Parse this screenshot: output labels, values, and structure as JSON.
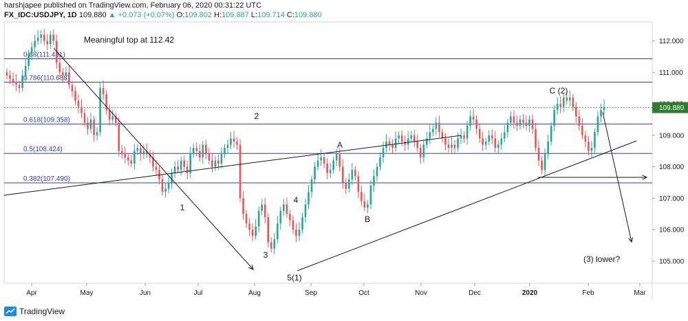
{
  "header": {
    "publisher_line": "harshjapee published on TradingView.com, February 06, 2020 00:31:22 UTC",
    "symbol": "FX_IDC:USDJPY, 1D",
    "last": "109.880",
    "change": "▲ +0.073 (+0.07%)",
    "o_label": "O:",
    "o_value": "109.802",
    "h_label": "H:",
    "h_value": "109.887",
    "l_label": "L:",
    "l_value": "109.714",
    "c_label": "C:",
    "c_value": "109.880"
  },
  "footer": {
    "brand": "TradingView"
  },
  "colors": {
    "up": "#26a69a",
    "down": "#ef5350",
    "fib": "#2f3bc4",
    "trend": "#131722",
    "last_price": "#2e7d32",
    "last_line": "#4caf50"
  },
  "chart_data": {
    "type": "candlestick",
    "symbol": "USDJPY",
    "y_axis": {
      "ylim": [
        104.3,
        112.6
      ],
      "ticks": [
        "112.000",
        "111.000",
        "110.000",
        "109.000",
        "108.000",
        "107.000",
        "106.000",
        "105.000"
      ]
    },
    "x_axis": {
      "ticks": [
        "Apr",
        "May",
        "Jun",
        "Jul",
        "Aug",
        "Sep",
        "Oct",
        "Nov",
        "Dec",
        "2020",
        "Feb",
        "Mar"
      ]
    },
    "last_price_label": "109.880",
    "fib_levels": [
      {
        "label": "0.88(111.431)",
        "value": 111.431
      },
      {
        "label": "0.786(110.688)",
        "value": 110.688
      },
      {
        "label": "0.618(109.358)",
        "value": 109.358
      },
      {
        "label": "0.5(108.424)",
        "value": 108.424
      },
      {
        "label": "0.382(107.490)",
        "value": 107.49
      }
    ],
    "annotations": [
      {
        "text": "Meaningful top at 112.42"
      },
      {
        "text": "1"
      },
      {
        "text": "2"
      },
      {
        "text": "3"
      },
      {
        "text": "4"
      },
      {
        "text": "5(1)"
      },
      {
        "text": "A"
      },
      {
        "text": "B"
      },
      {
        "text": "C  (2)"
      },
      {
        "text": "(3) lower?"
      }
    ],
    "months": [
      "Apr",
      "May",
      "Jun",
      "Jul",
      "Aug",
      "Sep",
      "Oct",
      "Nov",
      "Dec",
      "Jan",
      "Feb"
    ],
    "closes": [
      110.9,
      110.8,
      110.7,
      110.6,
      110.5,
      110.9,
      111.2,
      111.6,
      111.8,
      112.0,
      112.1,
      112.2,
      112.0,
      111.9,
      112.2,
      112.0,
      111.3,
      111.0,
      110.9,
      111.0,
      110.6,
      110.4,
      110.1,
      109.9,
      109.7,
      109.4,
      109.2,
      109.5,
      109.0,
      109.1,
      110.5,
      110.3,
      109.8,
      109.5,
      109.6,
      109.4,
      108.5,
      108.4,
      108.3,
      108.2,
      108.1,
      108.5,
      108.6,
      108.4,
      108.5,
      108.4,
      108.3,
      108.0,
      107.9,
      107.6,
      107.2,
      107.3,
      107.5,
      107.8,
      108.0,
      107.9,
      108.2,
      108.0,
      107.8,
      108.4,
      108.6,
      108.5,
      108.3,
      108.7,
      108.4,
      108.2,
      108.0,
      108.2,
      108.1,
      108.4,
      108.6,
      108.7,
      108.9,
      108.8,
      108.7,
      107.0,
      106.5,
      106.2,
      106.0,
      105.8,
      106.1,
      106.6,
      106.8,
      106.4,
      105.6,
      105.4,
      105.7,
      106.2,
      106.6,
      106.8,
      106.5,
      106.3,
      106.0,
      105.8,
      106.0,
      106.4,
      106.8,
      107.2,
      107.6,
      108.0,
      108.2,
      108.3,
      108.1,
      107.8,
      107.9,
      108.2,
      108.4,
      108.0,
      107.5,
      107.3,
      107.6,
      107.9,
      107.7,
      107.2,
      106.9,
      106.7,
      106.8,
      107.4,
      107.7,
      108.0,
      108.3,
      108.6,
      108.8,
      108.7,
      108.6,
      108.9,
      109.0,
      108.8,
      108.7,
      108.9,
      109.0,
      108.8,
      108.6,
      108.3,
      108.7,
      108.9,
      109.1,
      109.2,
      109.4,
      109.1,
      108.9,
      108.7,
      108.6,
      108.7,
      108.6,
      108.9,
      109.0,
      108.9,
      109.3,
      109.6,
      109.5,
      109.2,
      108.9,
      108.7,
      108.8,
      109.0,
      108.9,
      108.6,
      108.7,
      108.9,
      109.1,
      109.4,
      109.6,
      109.4,
      109.3,
      109.5,
      109.4,
      109.3,
      109.5,
      109.2,
      108.6,
      108.2,
      107.9,
      108.4,
      108.8,
      109.3,
      109.8,
      110.0,
      109.9,
      110.2,
      110.1,
      110.2,
      109.9,
      109.6,
      109.3,
      109.0,
      108.8,
      108.5,
      108.6,
      109.1,
      109.6,
      109.8,
      109.9
    ]
  }
}
